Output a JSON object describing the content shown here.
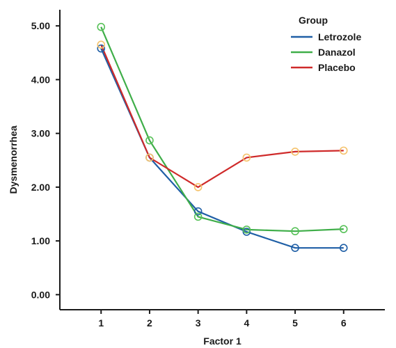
{
  "chart_data": {
    "type": "line",
    "xlabel": "Factor 1",
    "ylabel": "Dysmenorrhea",
    "x": [
      1,
      2,
      3,
      4,
      5,
      6
    ],
    "x_tick_labels": [
      "1",
      "2",
      "3",
      "4",
      "5",
      "6"
    ],
    "xlim": [
      0.15,
      6.85
    ],
    "ylim": [
      -0.28,
      5.3
    ],
    "y_ticks": [
      0,
      1,
      2,
      3,
      4,
      5
    ],
    "y_tick_labels": [
      "0.00",
      "1.00",
      "2.00",
      "3.00",
      "4.00",
      "5.00"
    ],
    "grid": false,
    "legend": {
      "title": "Group",
      "position": "top-right"
    },
    "series": [
      {
        "name": "Letrozole",
        "color": "#1f5fa6",
        "marker_color": "#1f5fa6",
        "values": [
          4.58,
          2.55,
          1.55,
          1.17,
          0.87,
          0.87
        ]
      },
      {
        "name": "Danazol",
        "color": "#3fae49",
        "marker_color": "#57c158",
        "values": [
          4.98,
          2.87,
          1.45,
          1.21,
          1.18,
          1.22
        ]
      },
      {
        "name": "Placebo",
        "color": "#cf2a2a",
        "marker_color": "#f5c26b",
        "values": [
          4.65,
          2.55,
          2.0,
          2.55,
          2.66,
          2.68
        ]
      }
    ]
  }
}
